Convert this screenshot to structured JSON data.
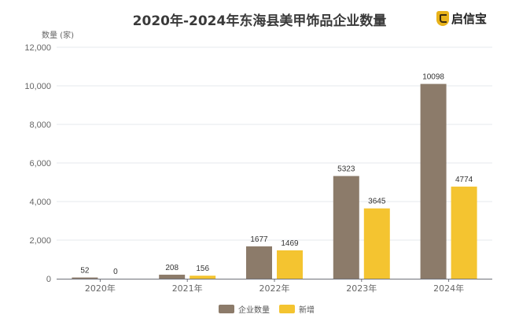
{
  "header": {
    "title": "2020年-2024年东海县美甲饰品企业数量",
    "logo_text": "启信宝",
    "logo_icon": "shield-logo-icon"
  },
  "chart_data": {
    "type": "bar",
    "title": "2020年-2024年东海县美甲饰品企业数量",
    "xlabel": "",
    "ylabel": "数量 (家)",
    "ylim": [
      0,
      12000
    ],
    "yticks": [
      0,
      2000,
      4000,
      6000,
      8000,
      10000,
      12000
    ],
    "ytick_labels": [
      "0",
      "2,000",
      "4,000",
      "6,000",
      "8,000",
      "10,000",
      "12,000"
    ],
    "categories": [
      "2020年",
      "2021年",
      "2022年",
      "2023年",
      "2024年"
    ],
    "series": [
      {
        "name": "企业数量",
        "color": "#8c7b6a",
        "values": [
          52,
          208,
          1677,
          5323,
          10098
        ]
      },
      {
        "name": "新增",
        "color": "#f4c430",
        "values": [
          0,
          156,
          1469,
          3645,
          4774
        ]
      }
    ],
    "grid": true,
    "legend_position": "bottom"
  }
}
